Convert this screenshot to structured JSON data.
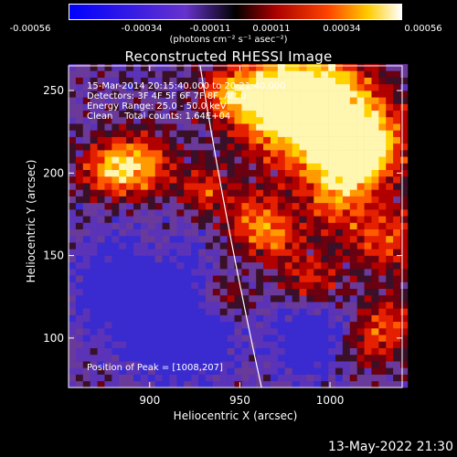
{
  "colorbar": {
    "ticks": [
      "-0.00056",
      "-0.00034",
      "-0.00011",
      "0.00011",
      "0.00034",
      "0.00056"
    ],
    "units": "(photons cm⁻² s⁻¹ asec⁻²)"
  },
  "chart_data": {
    "type": "heatmap",
    "title": "Reconstructed RHESSI Image",
    "xlabel": "Heliocentric X (arcsec)",
    "ylabel": "Heliocentric Y (arcsec)",
    "xlim": [
      855,
      1040
    ],
    "ylim": [
      70,
      265
    ],
    "xticks": [
      900,
      950,
      1000
    ],
    "yticks": [
      100,
      150,
      200,
      250
    ],
    "value_range": [
      -0.00056,
      0.00056
    ],
    "colormap": "rhessi-blue-red-yellow",
    "limb_x_at_ylim": [
      928,
      962
    ],
    "peak_position": [
      1008,
      207
    ],
    "info_lines": [
      "15-Mar-2014 20:15:40.000 to 20:21:40.000",
      "Detectors: 3F 4F 5F 6F 7F 8F, Att 0",
      "Energy Range: 25.0 - 50.0 keV",
      "Clean    Total counts: 1.64E+04"
    ],
    "peak_label": "Position of Peak = [1008,207]",
    "date_label": "13-May-2022 21:30"
  }
}
